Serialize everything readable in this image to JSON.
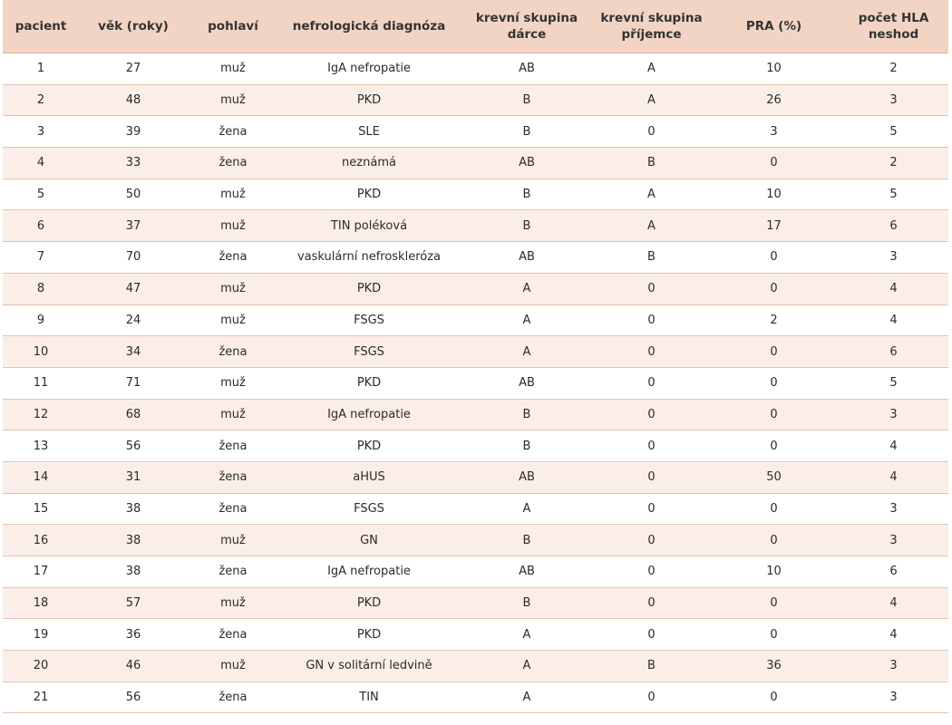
{
  "table": {
    "headers": [
      "pacient",
      "věk (roky)",
      "pohlaví",
      "nefrologická diagnóza",
      "krevní skupina\ndárce",
      "krevní skupina\npříjemce",
      "PRA (%)",
      "počet HLA\nneshod"
    ],
    "rows": [
      [
        "1",
        "27",
        "muž",
        "IgA nefropatie",
        "AB",
        "A",
        "10",
        "2"
      ],
      [
        "2",
        "48",
        "muž",
        "PKD",
        "B",
        "A",
        "26",
        "3"
      ],
      [
        "3",
        "39",
        "žena",
        "SLE",
        "B",
        "0",
        "3",
        "5"
      ],
      [
        "4",
        "33",
        "žena",
        "neznámá",
        "AB",
        "B",
        "0",
        "2"
      ],
      [
        "5",
        "50",
        "muž",
        "PKD",
        "B",
        "A",
        "10",
        "5"
      ],
      [
        "6",
        "37",
        "muž",
        "TIN poléková",
        "B",
        "A",
        "17",
        "6"
      ],
      [
        "7",
        "70",
        "žena",
        "vaskulární nefroskleróza",
        "AB",
        "B",
        "0",
        "3"
      ],
      [
        "8",
        "47",
        "muž",
        "PKD",
        "A",
        "0",
        "0",
        "4"
      ],
      [
        "9",
        "24",
        "muž",
        "FSGS",
        "A",
        "0",
        "2",
        "4"
      ],
      [
        "10",
        "34",
        "žena",
        "FSGS",
        "A",
        "0",
        "0",
        "6"
      ],
      [
        "11",
        "71",
        "muž",
        "PKD",
        "AB",
        "0",
        "0",
        "5"
      ],
      [
        "12",
        "68",
        "muž",
        "IgA nefropatie",
        "B",
        "0",
        "0",
        "3"
      ],
      [
        "13",
        "56",
        "žena",
        "PKD",
        "B",
        "0",
        "0",
        "4"
      ],
      [
        "14",
        "31",
        "žena",
        "aHUS",
        "AB",
        "0",
        "50",
        "4"
      ],
      [
        "15",
        "38",
        "žena",
        "FSGS",
        "A",
        "0",
        "0",
        "3"
      ],
      [
        "16",
        "38",
        "muž",
        "GN",
        "B",
        "0",
        "0",
        "3"
      ],
      [
        "17",
        "38",
        "žena",
        "IgA nefropatie",
        "AB",
        "0",
        "10",
        "6"
      ],
      [
        "18",
        "57",
        "muž",
        "PKD",
        "B",
        "0",
        "0",
        "4"
      ],
      [
        "19",
        "36",
        "žena",
        "PKD",
        "A",
        "0",
        "0",
        "4"
      ],
      [
        "20",
        "46",
        "muž",
        "GN v solitární ledvině",
        "A",
        "B",
        "36",
        "3"
      ],
      [
        "21",
        "56",
        "žena",
        "TIN",
        "A",
        "0",
        "0",
        "3"
      ]
    ]
  },
  "colors": {
    "header_background": "#f2d4c4",
    "row_alt_background": "#fbeee8",
    "row_divider": "#e3c3b3"
  }
}
